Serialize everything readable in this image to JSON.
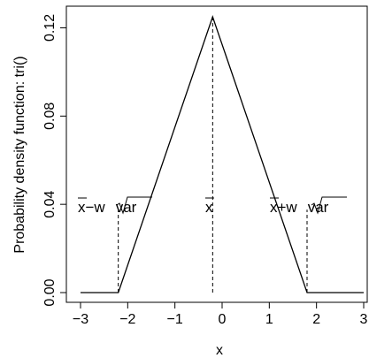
{
  "chart_data": {
    "type": "line",
    "title": "",
    "xlabel": "x",
    "ylabel": "Probability density function: tri()",
    "xlim": [
      -3,
      3
    ],
    "ylim": [
      0,
      0.125
    ],
    "xticks": [
      "-3",
      "-2",
      "-1",
      "0",
      "1",
      "2",
      "3"
    ],
    "yticks": [
      "0.00",
      "0.04",
      "0.08",
      "0.12"
    ],
    "grid": false,
    "legend": "none",
    "x": [
      -3.0,
      -2.2,
      -0.2,
      1.8,
      3.0
    ],
    "y": [
      0.0,
      0.0,
      0.125,
      0.0,
      0.0
    ],
    "annotations": [
      {
        "label": "x̄−w√var",
        "x": -2.2,
        "y": 0.04
      },
      {
        "label": "x̄",
        "x": -0.2,
        "y": 0.125
      },
      {
        "label": "x̄+w√var",
        "x": 1.8,
        "y": 0.04
      }
    ],
    "colors": {
      "line": "#000000",
      "axes": "#000000"
    }
  }
}
